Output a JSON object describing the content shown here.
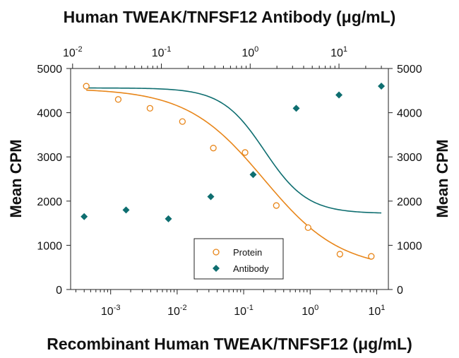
{
  "chart_data": {
    "type": "scatter",
    "top_title": "Human TWEAK/TNFSF12 Antibody (μg/mL)",
    "bottom_title": "Recombinant Human TWEAK/TNFSF12 (μg/mL)",
    "ylabel_left": "Mean CPM",
    "ylabel_right": "Mean CPM",
    "ylim": [
      0,
      5000
    ],
    "yticks": [
      0,
      1000,
      2000,
      3000,
      4000,
      5000
    ],
    "bottom_axis": {
      "scale": "log",
      "range": [
        0.00025,
        15
      ],
      "ticks": [
        {
          "value": 0.001,
          "base": "10",
          "exp": "-3"
        },
        {
          "value": 0.01,
          "base": "10",
          "exp": "-2"
        },
        {
          "value": 0.1,
          "base": "10",
          "exp": "-1"
        },
        {
          "value": 1,
          "base": "10",
          "exp": "0"
        },
        {
          "value": 10,
          "base": "10",
          "exp": "1"
        }
      ]
    },
    "top_axis": {
      "scale": "log",
      "range": [
        0.0095,
        36
      ],
      "ticks": [
        {
          "value": 0.01,
          "base": "10",
          "exp": "-2"
        },
        {
          "value": 0.1,
          "base": "10",
          "exp": "-1"
        },
        {
          "value": 1,
          "base": "10",
          "exp": "0"
        },
        {
          "value": 10,
          "base": "10",
          "exp": "1"
        }
      ]
    },
    "series": [
      {
        "name": "Protein",
        "axis": "bottom",
        "marker": "open-circle",
        "color": "#E8861A",
        "x": [
          0.00043,
          0.0013,
          0.0039,
          0.012,
          0.035,
          0.105,
          0.31,
          0.93,
          2.8,
          8.3
        ],
        "y": [
          4600,
          4300,
          4100,
          3800,
          3200,
          3100,
          1900,
          1400,
          800,
          750
        ],
        "fit": {
          "top": 4550,
          "bottom": 450,
          "ec50": 0.2,
          "hill": 0.75
        }
      },
      {
        "name": "Antibody",
        "axis": "top",
        "marker": "filled-diamond",
        "color": "#0E6E70",
        "x": [
          0.0135,
          0.04,
          0.12,
          0.36,
          1.08,
          3.3,
          10,
          30
        ],
        "y": [
          1650,
          1800,
          1600,
          2100,
          2600,
          4100,
          4400,
          4600
        ],
        "fit": {
          "top": 4560,
          "bottom": 1720,
          "ec50": 1.45,
          "hill": 1.8
        }
      }
    ],
    "legend": {
      "position": "bottom-center",
      "entries": [
        "Protein",
        "Antibody"
      ]
    }
  }
}
